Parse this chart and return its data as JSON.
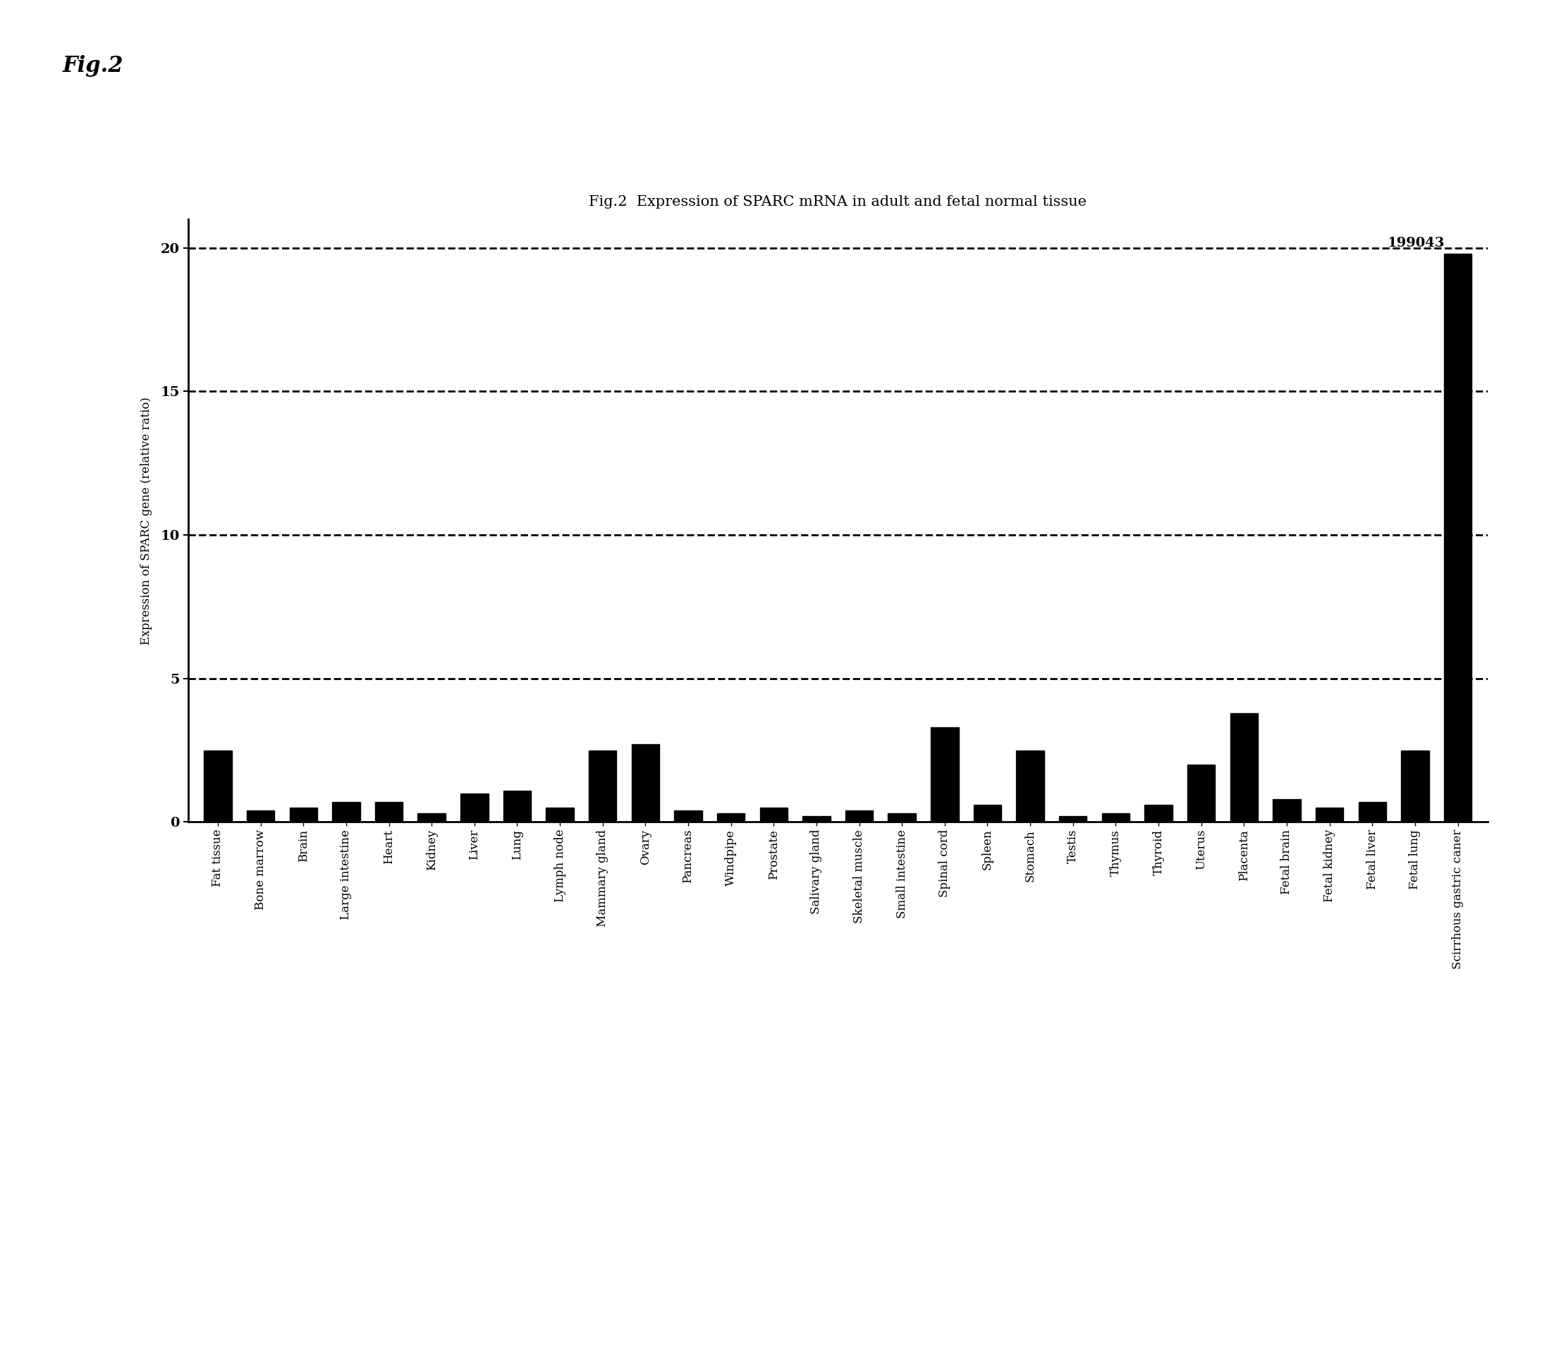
{
  "title": "Fig.2  Expression of SPARC mRNA in adult and fetal normal tissue",
  "fig_label": "Fig.2",
  "ylabel": "Expression of SPARC gene (relative ratio)",
  "ylim": [
    0,
    21
  ],
  "yticks": [
    0,
    5,
    10,
    15,
    20
  ],
  "grid_lines": [
    5,
    10,
    15,
    20
  ],
  "annotation": "199043",
  "categories": [
    "Fat tissue",
    "Bone marrow",
    "Brain",
    "Large intestine",
    "Heart",
    "Kidney",
    "Liver",
    "Lung",
    "Lymph node",
    "Mammary gland",
    "Ovary",
    "Pancreas",
    "Windpipe",
    "Prostate",
    "Salivary gland",
    "Skeletal muscle",
    "Small intestine",
    "Spinal cord",
    "Spleen",
    "Stomach",
    "Testis",
    "Thymus",
    "Thyroid",
    "Uterus",
    "Placenta",
    "Fetal brain",
    "Fetal kidney",
    "Fetal liver",
    "Fetal lung",
    "Scirrhous gastric caner"
  ],
  "values": [
    2.5,
    0.4,
    0.5,
    0.7,
    0.7,
    0.3,
    1.0,
    1.1,
    0.5,
    2.5,
    2.7,
    0.4,
    0.3,
    0.5,
    0.2,
    0.4,
    0.3,
    3.3,
    0.6,
    2.5,
    0.2,
    0.3,
    0.6,
    2.0,
    3.8,
    0.8,
    0.5,
    0.7,
    2.5,
    19.8
  ],
  "bar_color": "#000000",
  "background_color": "#ffffff",
  "title_fontsize": 15,
  "fig_label_fontsize": 22,
  "tick_fontsize": 12,
  "ytick_fontsize": 14,
  "ylabel_fontsize": 12,
  "annotation_fontsize": 14
}
